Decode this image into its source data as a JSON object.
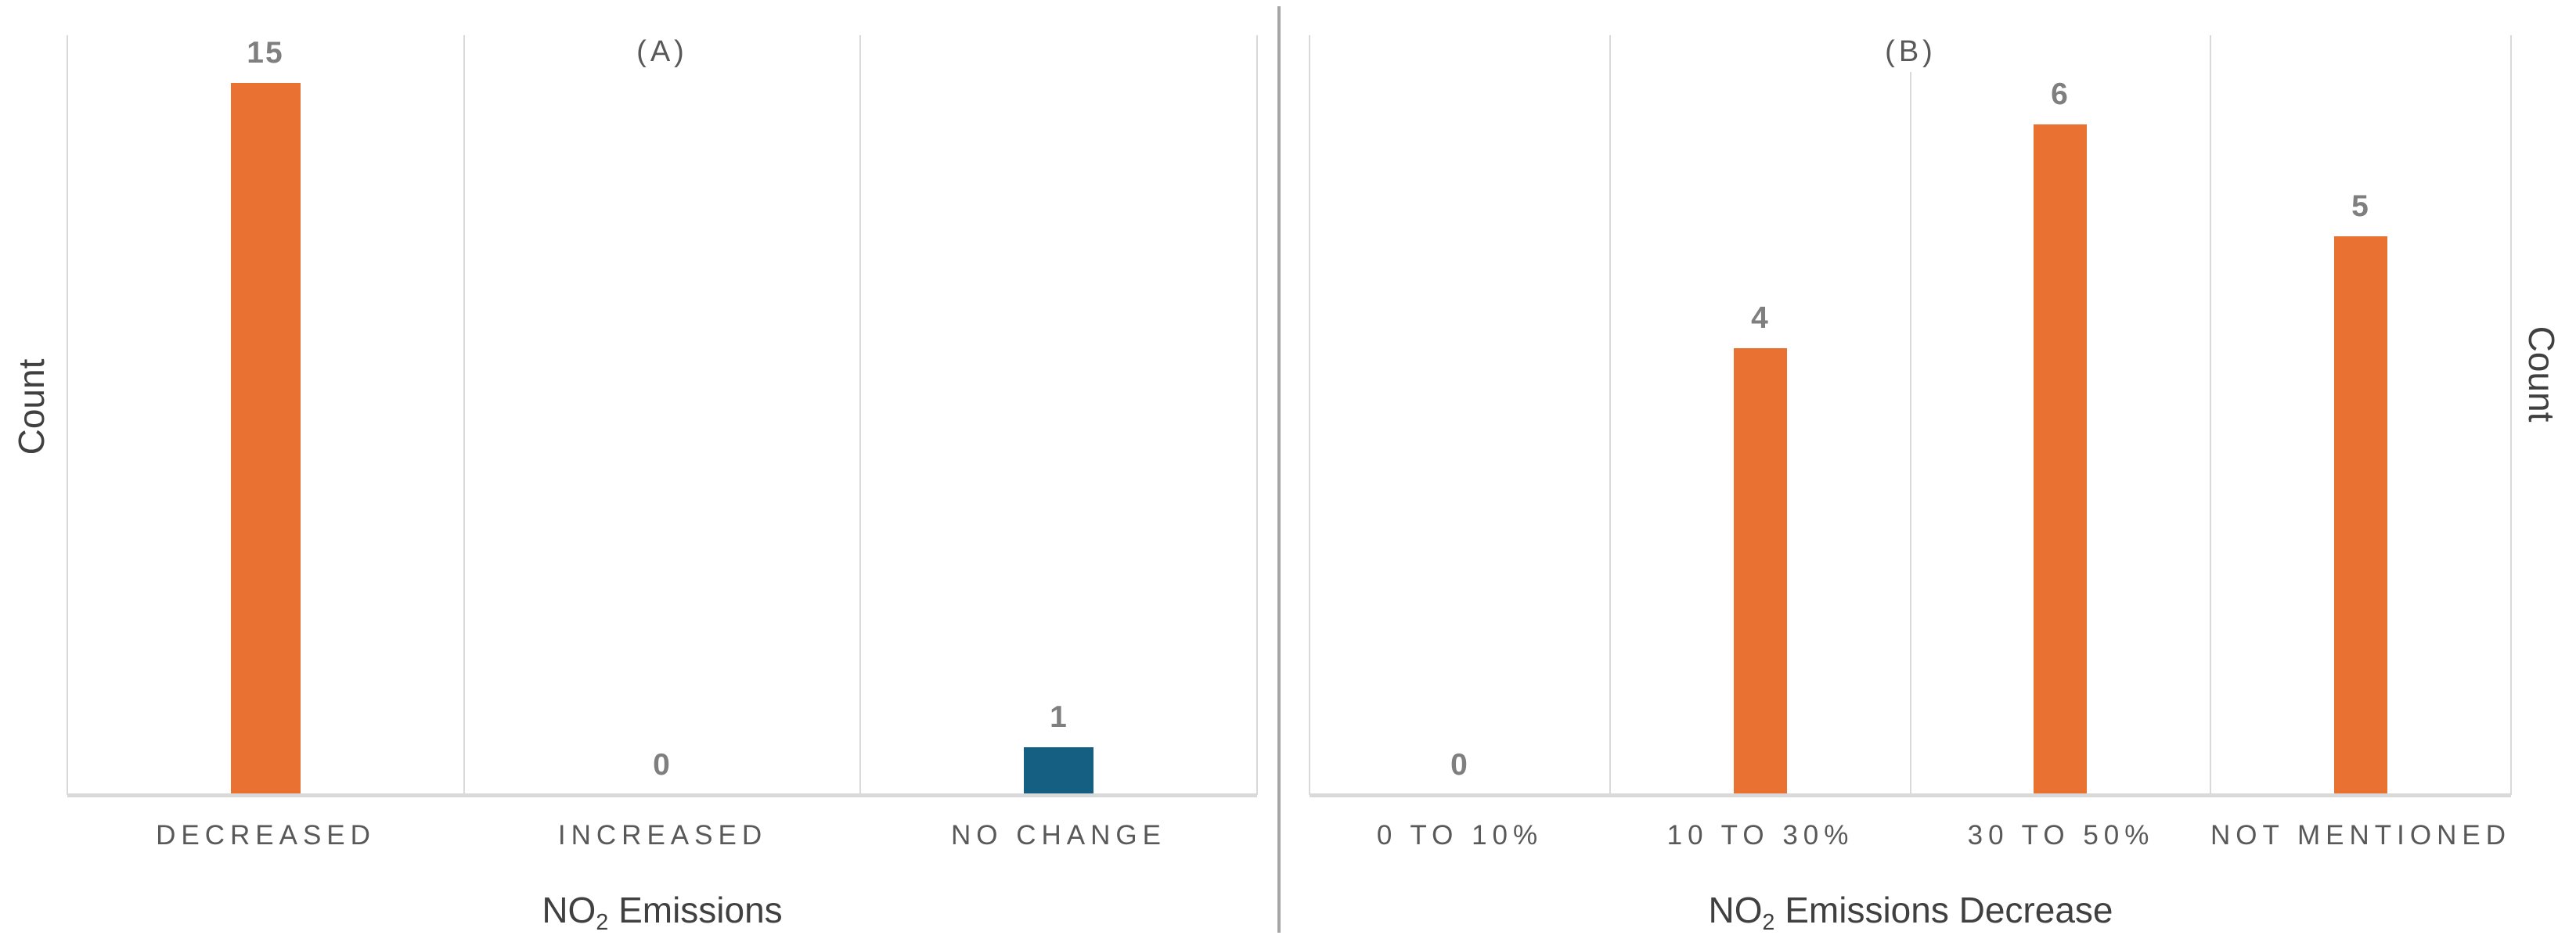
{
  "figure": {
    "background": "#ffffff",
    "divider_color": "#a6a6a6",
    "gridline_color": "#d9d9d9",
    "value_label_color": "#7f7f7f",
    "category_label_color": "#595959",
    "axis_title_color": "#404040",
    "panel_title_color": "#595959",
    "accent_orange": "#E97132",
    "accent_teal": "#156082"
  },
  "chart_data": [
    {
      "type": "bar",
      "panel": "A",
      "title": "(A)",
      "categories": [
        "DECREASED",
        "INCREASED",
        "NO CHANGE"
      ],
      "values": [
        15,
        0,
        1
      ],
      "value_labels": [
        "15",
        "0",
        "1"
      ],
      "bar_colors": [
        "#E97132",
        "#E97132",
        "#156082"
      ],
      "xlabel": {
        "pre": "NO",
        "sub": "2",
        "post": "Emissions"
      },
      "ylabel": "Count",
      "ylabel_side": "left",
      "ylim": [
        0,
        16
      ],
      "grid": "vertical-category-boundaries",
      "legend": "none"
    },
    {
      "type": "bar",
      "panel": "B",
      "title": "(B)",
      "categories": [
        "0 TO 10%",
        "10 TO 30%",
        "30 TO 50%",
        "NOT MENTIONED"
      ],
      "values": [
        0,
        4,
        6,
        5
      ],
      "value_labels": [
        "0",
        "4",
        "6",
        "5"
      ],
      "bar_colors": [
        "#E97132",
        "#E97132",
        "#E97132",
        "#E97132"
      ],
      "xlabel": {
        "pre": "NO",
        "sub": "2",
        "post": "Emissions Decrease"
      },
      "ylabel": "Count",
      "ylabel_side": "right",
      "ylim": [
        0,
        6.8
      ],
      "grid": "vertical-category-boundaries",
      "legend": "none"
    }
  ]
}
